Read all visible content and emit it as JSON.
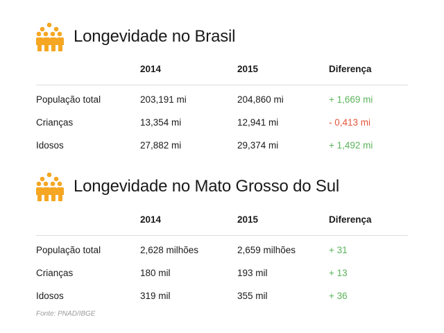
{
  "colors": {
    "icon": "#f5a623",
    "positive": "#5bb35a",
    "negative": "#e2553a",
    "divider": "#dcdcdc",
    "source_text": "#9a9a9a"
  },
  "sections": [
    {
      "icon": "people-group-icon",
      "title": "Longevidade no Brasil",
      "headers": [
        "",
        "2014",
        "2015",
        "Diferença"
      ],
      "rows": [
        {
          "label": "População total",
          "y2014": "203,191 mi",
          "y2015": "204,860 mi",
          "diff": "+ 1,669 mi",
          "diff_sign": "positive"
        },
        {
          "label": "Crianças",
          "y2014": "13,354 mi",
          "y2015": "12,941 mi",
          "diff": "- 0,413 mi",
          "diff_sign": "negative"
        },
        {
          "label": "Idosos",
          "y2014": "27,882 mi",
          "y2015": "29,374 mi",
          "diff": "+ 1,492 mi",
          "diff_sign": "positive"
        }
      ]
    },
    {
      "icon": "people-group-icon",
      "title": "Longevidade no Mato Grosso do Sul",
      "headers": [
        "",
        "2014",
        "2015",
        "Diferença"
      ],
      "rows": [
        {
          "label": "População total",
          "y2014": "2,628 milhões",
          "y2015": "2,659 milhões",
          "diff": "+ 31",
          "diff_sign": "positive"
        },
        {
          "label": "Crianças",
          "y2014": "180 mil",
          "y2015": "193 mil",
          "diff": "+ 13",
          "diff_sign": "positive"
        },
        {
          "label": "Idosos",
          "y2014": "319 mil",
          "y2015": "355 mil",
          "diff": "+ 36",
          "diff_sign": "positive"
        }
      ]
    }
  ],
  "source": "Fonte: PNAD/IBGE"
}
